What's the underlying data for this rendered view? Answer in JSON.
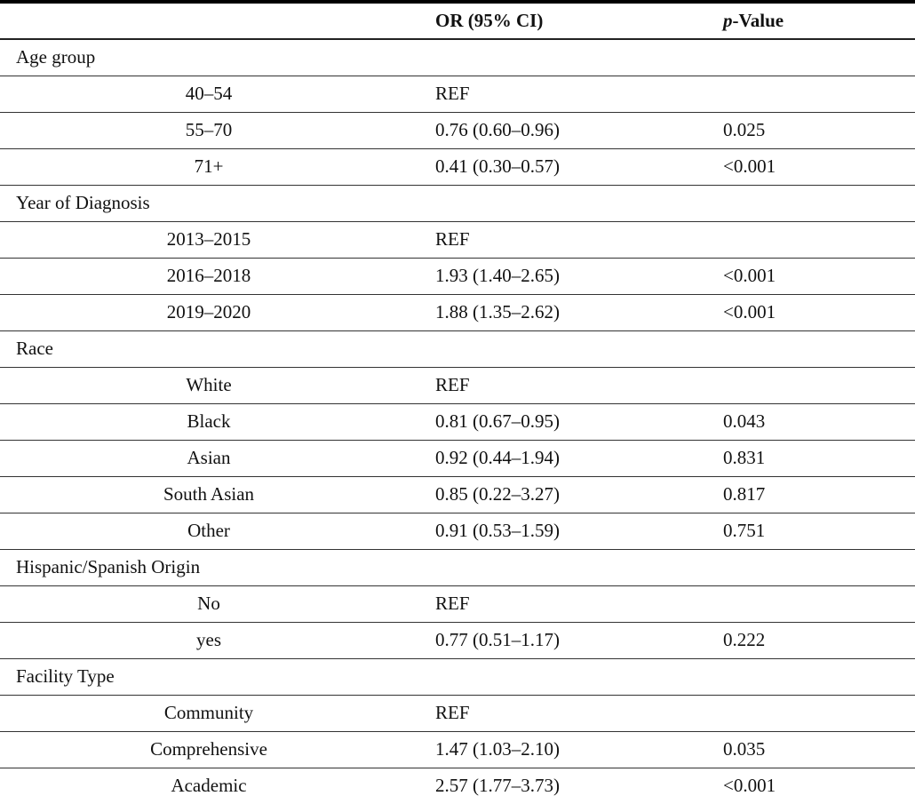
{
  "table": {
    "headers": {
      "col1": "",
      "or_ci": "OR (95% CI)",
      "p_italic": "p",
      "p_rest": "-Value"
    },
    "rows": [
      {
        "type": "section",
        "label": "Age group",
        "or": "",
        "p": ""
      },
      {
        "type": "item",
        "label": "40–54",
        "or": "REF",
        "p": ""
      },
      {
        "type": "item",
        "label": "55–70",
        "or": "0.76 (0.60–0.96)",
        "p": "0.025"
      },
      {
        "type": "item",
        "label": "71+",
        "or": "0.41 (0.30–0.57)",
        "p": "<0.001"
      },
      {
        "type": "section",
        "label": "Year of Diagnosis",
        "or": "",
        "p": ""
      },
      {
        "type": "item",
        "label": "2013–2015",
        "or": "REF",
        "p": ""
      },
      {
        "type": "item",
        "label": "2016–2018",
        "or": "1.93 (1.40–2.65)",
        "p": "<0.001"
      },
      {
        "type": "item",
        "label": "2019–2020",
        "or": "1.88 (1.35–2.62)",
        "p": "<0.001"
      },
      {
        "type": "section",
        "label": "Race",
        "or": "",
        "p": ""
      },
      {
        "type": "item",
        "label": "White",
        "or": "REF",
        "p": ""
      },
      {
        "type": "item",
        "label": "Black",
        "or": "0.81 (0.67–0.95)",
        "p": "0.043"
      },
      {
        "type": "item",
        "label": "Asian",
        "or": "0.92 (0.44–1.94)",
        "p": "0.831"
      },
      {
        "type": "item",
        "label": "South Asian",
        "or": "0.85 (0.22–3.27)",
        "p": "0.817"
      },
      {
        "type": "item",
        "label": "Other",
        "or": "0.91 (0.53–1.59)",
        "p": "0.751"
      },
      {
        "type": "section",
        "label": "Hispanic/Spanish Origin",
        "or": "",
        "p": ""
      },
      {
        "type": "item",
        "label": "No",
        "or": "REF",
        "p": ""
      },
      {
        "type": "item",
        "label": "yes",
        "or": "0.77 (0.51–1.17)",
        "p": "0.222"
      },
      {
        "type": "section",
        "label": "Facility Type",
        "or": "",
        "p": ""
      },
      {
        "type": "item",
        "label": "Community",
        "or": "REF",
        "p": ""
      },
      {
        "type": "item",
        "label": "Comprehensive",
        "or": "1.47 (1.03–2.10)",
        "p": "0.035"
      },
      {
        "type": "item",
        "label": "Academic",
        "or": "2.57 (1.77–3.73)",
        "p": "<0.001"
      }
    ],
    "style": {
      "top_rule_color": "#000000",
      "row_rule_color": "#333333",
      "text_color": "#111111"
    }
  }
}
